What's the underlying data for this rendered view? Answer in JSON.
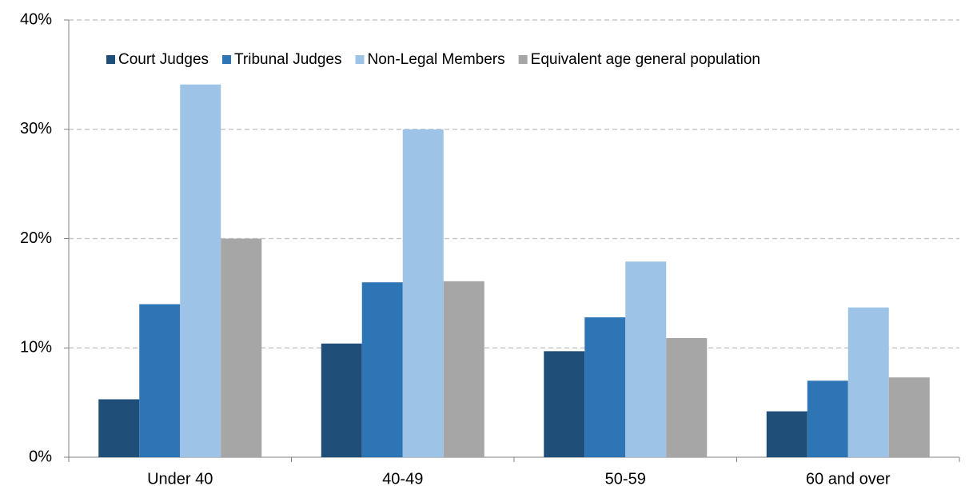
{
  "chart_data": {
    "type": "bar",
    "categories": [
      "Under 40",
      "40-49",
      "50-59",
      "60 and over"
    ],
    "series": [
      {
        "name": "Court Judges",
        "color": "#1f4e79",
        "values": [
          5.3,
          10.4,
          9.7,
          4.2
        ]
      },
      {
        "name": "Tribunal Judges",
        "color": "#2e75b6",
        "values": [
          14.0,
          16.0,
          12.8,
          7.0
        ]
      },
      {
        "name": "Non-Legal Members",
        "color": "#9dc3e6",
        "values": [
          34.1,
          30.0,
          17.9,
          13.7
        ]
      },
      {
        "name": "Equivalent age general population",
        "color": "#a6a6a6",
        "values": [
          20.0,
          16.1,
          10.9,
          7.3
        ]
      }
    ],
    "ylim": [
      0,
      40
    ],
    "yticks": [
      {
        "value": 0,
        "label": "0%"
      },
      {
        "value": 10,
        "label": "10%"
      },
      {
        "value": 20,
        "label": "20%"
      },
      {
        "value": 30,
        "label": "30%"
      },
      {
        "value": 40,
        "label": "40%"
      }
    ],
    "grid": true,
    "legend": "top"
  }
}
